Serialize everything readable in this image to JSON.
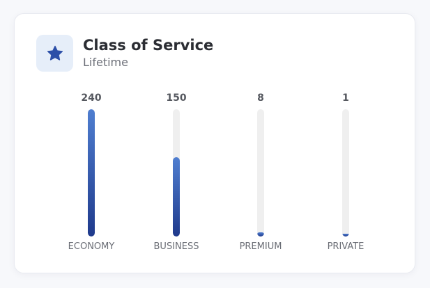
{
  "card": {
    "title": "Class of Service",
    "subtitle": "Lifetime",
    "icon": "star-icon"
  },
  "colors": {
    "accent": "#2c4fa8",
    "fill_top": "#4f7ed0",
    "fill_bottom": "#1f3a8c",
    "track": "#efefef",
    "icon_tile": "#e6eef9"
  },
  "chart_data": {
    "type": "bar",
    "categories": [
      "ECONOMY",
      "BUSINESS",
      "PREMIUM",
      "PRIVATE"
    ],
    "values": [
      240,
      150,
      8,
      1
    ],
    "ylim": [
      0,
      240
    ],
    "grid": false
  }
}
